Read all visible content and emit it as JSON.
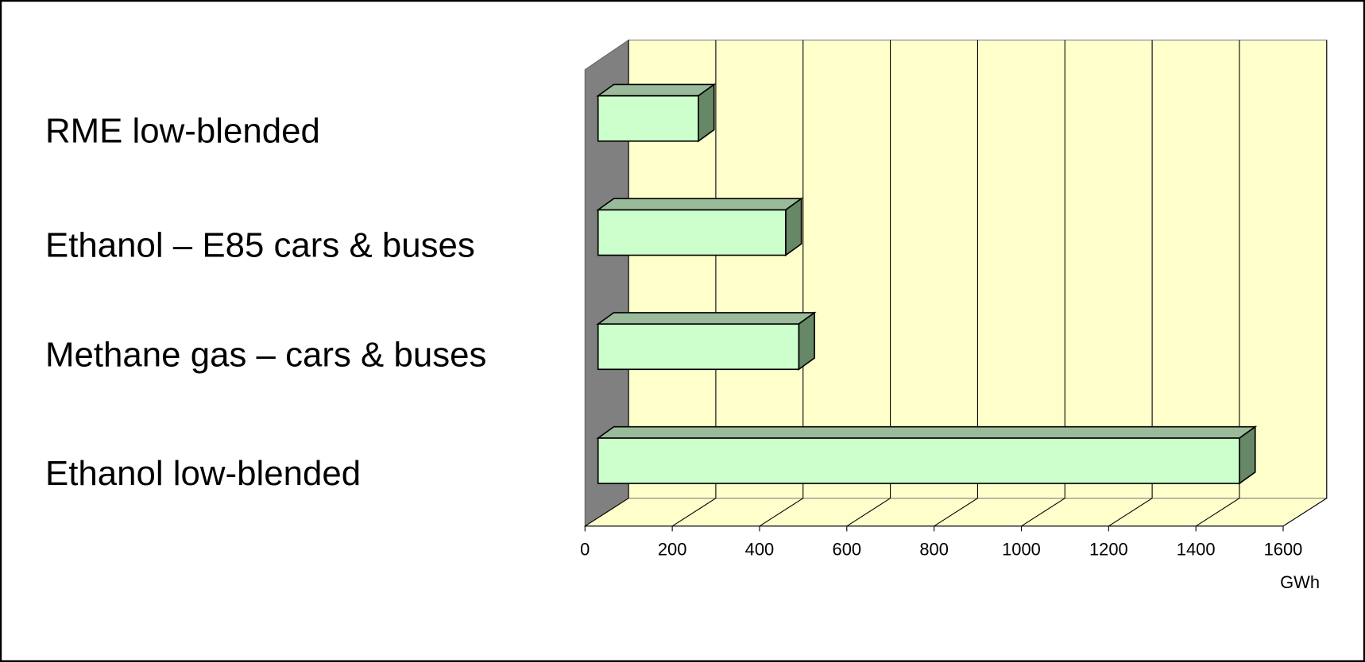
{
  "chart_data": {
    "type": "bar3d",
    "orientation": "horizontal",
    "categories": [
      "RME low-blended",
      "Ethanol – E85 cars & buses",
      "Methane gas – cars & buses",
      "Ethanol low-blended"
    ],
    "values": [
      230,
      430,
      460,
      1470
    ],
    "color": "#ccffcc",
    "x_label": "GWh",
    "xlim": [
      0,
      1600
    ],
    "xticks": [
      0,
      200,
      400,
      600,
      800,
      1000,
      1200,
      1400,
      1600
    ],
    "grid": true
  }
}
